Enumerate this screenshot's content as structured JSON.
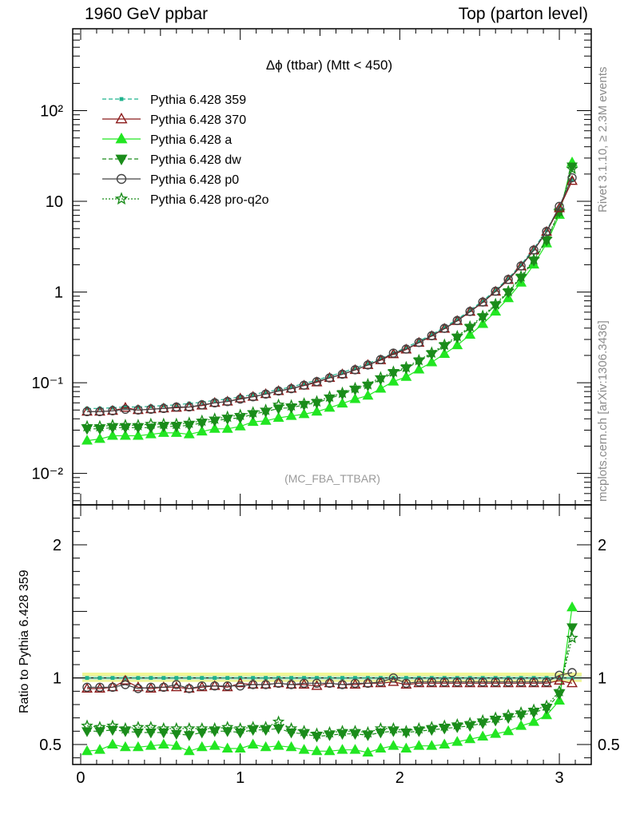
{
  "header": {
    "left": "1960 GeV ppbar",
    "right": "Top (parton level)"
  },
  "side_labels": {
    "top": "Rivet 3.1.10, ≥ 2.3M events",
    "bottom": "mcplots.cern.ch [arXiv:1306.3436]"
  },
  "ratio_ylabel": "Ratio to Pythia 6.428 359",
  "colors": {
    "series_359": "#1fb38c",
    "series_370": "#8b1a1a",
    "series_a": "#22e622",
    "series_dw": "#1a8c1a",
    "series_p0": "#444444",
    "series_proq2o": "#1a8c1a"
  },
  "chart_data": {
    "type": "line",
    "title": "Δϕ (ttbar) (Mtt < 450)",
    "watermark": "(MC_FBA_TTBAR)",
    "x": [
      0.04,
      0.12,
      0.2,
      0.28,
      0.36,
      0.44,
      0.52,
      0.6,
      0.68,
      0.76,
      0.84,
      0.92,
      1.0,
      1.08,
      1.16,
      1.24,
      1.32,
      1.4,
      1.48,
      1.56,
      1.64,
      1.72,
      1.8,
      1.88,
      1.96,
      2.04,
      2.12,
      2.2,
      2.28,
      2.36,
      2.44,
      2.52,
      2.6,
      2.68,
      2.76,
      2.84,
      2.92,
      3.0,
      3.08
    ],
    "xlim": [
      -0.05,
      3.2
    ],
    "xticks": [
      0,
      1,
      2,
      3
    ],
    "xtick_labels": [
      "0",
      "1",
      "2",
      "3"
    ],
    "main_axis": {
      "scale": "log",
      "ylim": [
        0.0045,
        800
      ],
      "yticks": [
        0.01,
        0.1,
        1,
        10,
        100
      ],
      "ytick_labels": [
        "10⁻²",
        "10⁻¹",
        "1",
        "10",
        "10²"
      ]
    },
    "ratio_axis": {
      "scale": "linear",
      "ylim": [
        0.35,
        2.3
      ],
      "yticks": [
        0.5,
        1,
        2
      ],
      "ytick_labels": [
        "0.5",
        "1",
        "2"
      ],
      "reference_line": 1.0,
      "band": [
        0.97,
        1.04
      ]
    },
    "legend_placement": "top-left",
    "series": [
      {
        "name": "Pythia 6.428 359",
        "marker": "square",
        "line": "dashed",
        "values": [
          0.052,
          0.052,
          0.053,
          0.054,
          0.054,
          0.055,
          0.056,
          0.057,
          0.059,
          0.061,
          0.064,
          0.066,
          0.07,
          0.074,
          0.079,
          0.084,
          0.09,
          0.098,
          0.107,
          0.118,
          0.13,
          0.145,
          0.163,
          0.185,
          0.212,
          0.245,
          0.287,
          0.34,
          0.41,
          0.5,
          0.63,
          0.8,
          1.05,
          1.42,
          2.0,
          3.0,
          4.8,
          8.6,
          17.5
        ],
        "ratio": [
          1.0,
          1.0,
          1.0,
          1.0,
          1.0,
          1.0,
          1.0,
          1.0,
          1.0,
          1.0,
          1.0,
          1.0,
          1.0,
          1.0,
          1.0,
          1.0,
          1.0,
          1.0,
          1.0,
          1.0,
          1.0,
          1.0,
          1.0,
          1.0,
          1.0,
          1.0,
          1.0,
          1.0,
          1.0,
          1.0,
          1.0,
          1.0,
          1.0,
          1.0,
          1.0,
          1.0,
          1.0,
          1.0,
          1.0
        ]
      },
      {
        "name": "Pythia 6.428 370",
        "marker": "triangle-up-open",
        "line": "solid",
        "values": [
          0.048,
          0.048,
          0.049,
          0.053,
          0.05,
          0.051,
          0.052,
          0.053,
          0.054,
          0.056,
          0.06,
          0.062,
          0.067,
          0.07,
          0.075,
          0.081,
          0.086,
          0.093,
          0.101,
          0.113,
          0.124,
          0.138,
          0.157,
          0.177,
          0.206,
          0.232,
          0.276,
          0.327,
          0.394,
          0.48,
          0.605,
          0.768,
          1.01,
          1.36,
          1.92,
          2.88,
          4.61,
          8.4,
          16.8
        ],
        "ratio": [
          0.92,
          0.92,
          0.93,
          0.98,
          0.93,
          0.92,
          0.93,
          0.93,
          0.92,
          0.93,
          0.94,
          0.93,
          0.96,
          0.95,
          0.95,
          0.96,
          0.95,
          0.95,
          0.94,
          0.96,
          0.95,
          0.95,
          0.96,
          0.96,
          0.97,
          0.95,
          0.96,
          0.96,
          0.96,
          0.96,
          0.96,
          0.96,
          0.96,
          0.96,
          0.96,
          0.96,
          0.96,
          0.98,
          0.96
        ]
      },
      {
        "name": "Pythia 6.428 a",
        "marker": "triangle-up-filled",
        "line": "solid",
        "values": [
          0.023,
          0.024,
          0.026,
          0.026,
          0.026,
          0.027,
          0.028,
          0.028,
          0.027,
          0.029,
          0.031,
          0.031,
          0.033,
          0.037,
          0.038,
          0.041,
          0.043,
          0.045,
          0.048,
          0.053,
          0.059,
          0.066,
          0.072,
          0.086,
          0.103,
          0.116,
          0.14,
          0.168,
          0.208,
          0.259,
          0.338,
          0.444,
          0.609,
          0.855,
          1.27,
          2.01,
          3.44,
          7.1,
          26.8
        ],
        "ratio": [
          0.45,
          0.46,
          0.5,
          0.48,
          0.48,
          0.49,
          0.5,
          0.49,
          0.45,
          0.48,
          0.49,
          0.47,
          0.47,
          0.5,
          0.48,
          0.49,
          0.48,
          0.46,
          0.45,
          0.45,
          0.46,
          0.46,
          0.44,
          0.47,
          0.49,
          0.47,
          0.49,
          0.49,
          0.5,
          0.52,
          0.54,
          0.56,
          0.58,
          0.6,
          0.64,
          0.67,
          0.72,
          0.83,
          1.53
        ]
      },
      {
        "name": "Pythia 6.428 dw",
        "marker": "triangle-down-filled",
        "line": "dashed",
        "values": [
          0.031,
          0.031,
          0.032,
          0.032,
          0.032,
          0.032,
          0.033,
          0.033,
          0.034,
          0.036,
          0.038,
          0.04,
          0.041,
          0.045,
          0.048,
          0.052,
          0.053,
          0.057,
          0.06,
          0.067,
          0.075,
          0.084,
          0.093,
          0.109,
          0.128,
          0.144,
          0.172,
          0.207,
          0.254,
          0.315,
          0.403,
          0.528,
          0.714,
          0.994,
          1.44,
          2.22,
          3.7,
          7.6,
          24.2
        ],
        "ratio": [
          0.6,
          0.6,
          0.61,
          0.6,
          0.59,
          0.59,
          0.59,
          0.58,
          0.57,
          0.59,
          0.6,
          0.6,
          0.59,
          0.61,
          0.61,
          0.62,
          0.59,
          0.58,
          0.56,
          0.57,
          0.58,
          0.58,
          0.57,
          0.59,
          0.6,
          0.59,
          0.6,
          0.61,
          0.62,
          0.63,
          0.64,
          0.66,
          0.68,
          0.7,
          0.72,
          0.74,
          0.77,
          0.88,
          1.38
        ]
      },
      {
        "name": "Pythia 6.428 p0",
        "marker": "circle-open",
        "line": "solid",
        "values": [
          0.048,
          0.048,
          0.049,
          0.051,
          0.05,
          0.051,
          0.052,
          0.054,
          0.054,
          0.057,
          0.06,
          0.062,
          0.066,
          0.07,
          0.075,
          0.081,
          0.086,
          0.094,
          0.103,
          0.113,
          0.124,
          0.139,
          0.157,
          0.18,
          0.212,
          0.235,
          0.278,
          0.33,
          0.398,
          0.485,
          0.611,
          0.776,
          1.02,
          1.38,
          1.94,
          2.91,
          4.66,
          8.8,
          18.2
        ],
        "ratio": [
          0.93,
          0.93,
          0.93,
          0.95,
          0.92,
          0.93,
          0.93,
          0.95,
          0.92,
          0.94,
          0.94,
          0.94,
          0.94,
          0.95,
          0.95,
          0.96,
          0.95,
          0.96,
          0.96,
          0.96,
          0.95,
          0.96,
          0.96,
          0.97,
          1.0,
          0.96,
          0.97,
          0.97,
          0.97,
          0.97,
          0.97,
          0.97,
          0.97,
          0.97,
          0.97,
          0.97,
          0.97,
          1.02,
          1.04
        ]
      },
      {
        "name": "Pythia 6.428 pro-q2o",
        "marker": "star-open",
        "line": "dotted",
        "values": [
          0.033,
          0.033,
          0.034,
          0.034,
          0.034,
          0.035,
          0.035,
          0.035,
          0.036,
          0.038,
          0.04,
          0.042,
          0.044,
          0.047,
          0.05,
          0.057,
          0.056,
          0.059,
          0.062,
          0.07,
          0.077,
          0.087,
          0.096,
          0.114,
          0.132,
          0.148,
          0.177,
          0.214,
          0.262,
          0.325,
          0.416,
          0.544,
          0.735,
          1.02,
          1.48,
          2.28,
          3.8,
          7.7,
          22.8
        ],
        "ratio": [
          0.64,
          0.63,
          0.64,
          0.62,
          0.63,
          0.63,
          0.62,
          0.62,
          0.62,
          0.62,
          0.62,
          0.63,
          0.62,
          0.63,
          0.63,
          0.67,
          0.62,
          0.6,
          0.58,
          0.59,
          0.6,
          0.6,
          0.59,
          0.62,
          0.62,
          0.6,
          0.62,
          0.63,
          0.64,
          0.65,
          0.66,
          0.68,
          0.7,
          0.72,
          0.74,
          0.76,
          0.79,
          0.9,
          1.3
        ]
      }
    ]
  }
}
